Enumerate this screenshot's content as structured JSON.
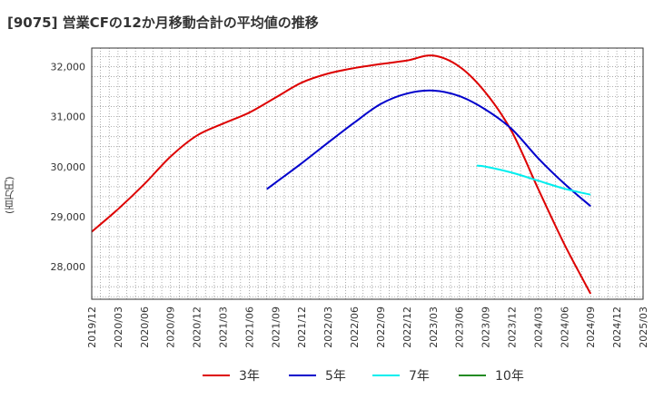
{
  "title": "[9075]  営業CFの12か月移動合計の平均値の推移",
  "y_unit_label": "(百万円)",
  "chart_data": {
    "type": "line",
    "title": "[9075]  営業CFの12か月移動合計の平均値の推移",
    "ylabel": "(百万円)",
    "xlabel": "",
    "x_ticks": [
      "2019/12",
      "2020/03",
      "2020/06",
      "2020/09",
      "2020/12",
      "2021/03",
      "2021/06",
      "2021/09",
      "2021/12",
      "2022/03",
      "2022/06",
      "2022/09",
      "2022/12",
      "2023/03",
      "2023/06",
      "2023/09",
      "2023/12",
      "2024/03",
      "2024/06",
      "2024/09",
      "2024/12",
      "2025/03"
    ],
    "y_ticks": [
      28000,
      29000,
      30000,
      31000,
      32000
    ],
    "y_tick_labels": [
      "28,000",
      "29,000",
      "30,000",
      "31,000",
      "32,000"
    ],
    "ylim": [
      27350,
      32370
    ],
    "grid": true,
    "legend_position": "bottom",
    "series": [
      {
        "name": "3年",
        "color": "#dd0000",
        "points": [
          [
            "2019/12",
            28700
          ],
          [
            "2020/03",
            29150
          ],
          [
            "2020/06",
            29650
          ],
          [
            "2020/09",
            30200
          ],
          [
            "2020/12",
            30620
          ],
          [
            "2021/03",
            30860
          ],
          [
            "2021/06",
            31080
          ],
          [
            "2021/09",
            31380
          ],
          [
            "2021/12",
            31680
          ],
          [
            "2022/03",
            31860
          ],
          [
            "2022/06",
            31970
          ],
          [
            "2022/09",
            32050
          ],
          [
            "2022/12",
            32120
          ],
          [
            "2023/03",
            32220
          ],
          [
            "2023/06",
            32000
          ],
          [
            "2023/09",
            31480
          ],
          [
            "2023/12",
            30700
          ],
          [
            "2024/03",
            29560
          ],
          [
            "2024/06",
            28450
          ],
          [
            "2024/09",
            27460
          ]
        ]
      },
      {
        "name": "5年",
        "color": "#0000cc",
        "points": [
          [
            "2021/08",
            29550
          ],
          [
            "2021/09",
            29680
          ],
          [
            "2021/12",
            30070
          ],
          [
            "2022/03",
            30480
          ],
          [
            "2022/06",
            30880
          ],
          [
            "2022/09",
            31250
          ],
          [
            "2022/12",
            31460
          ],
          [
            "2023/03",
            31520
          ],
          [
            "2023/06",
            31410
          ],
          [
            "2023/09",
            31140
          ],
          [
            "2023/12",
            30750
          ],
          [
            "2024/03",
            30170
          ],
          [
            "2024/06",
            29660
          ],
          [
            "2024/09",
            29210
          ]
        ]
      },
      {
        "name": "7年",
        "color": "#00eeee",
        "points": [
          [
            "2023/08",
            30020
          ],
          [
            "2023/09",
            30000
          ],
          [
            "2023/12",
            29880
          ],
          [
            "2024/03",
            29720
          ],
          [
            "2024/06",
            29560
          ],
          [
            "2024/09",
            29440
          ]
        ]
      },
      {
        "name": "10年",
        "color": "#228b22",
        "points": []
      }
    ]
  }
}
